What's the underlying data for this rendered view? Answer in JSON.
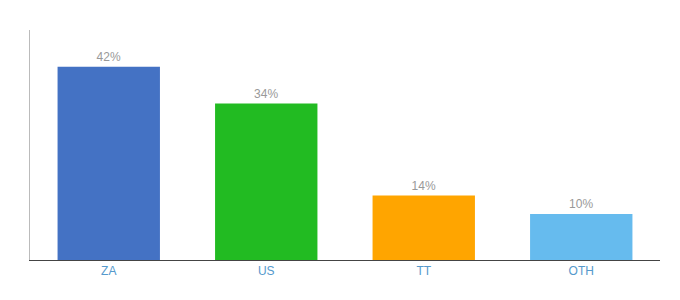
{
  "chart_data": {
    "type": "bar",
    "categories": [
      "ZA",
      "US",
      "TT",
      "OTH"
    ],
    "values": [
      42,
      34,
      14,
      10
    ],
    "value_labels": [
      "42%",
      "34%",
      "14%",
      "10%"
    ],
    "data_labels": true,
    "colors": [
      "#4472C4",
      "#22BB22",
      "#FFA500",
      "#66BBEE"
    ],
    "ylim": [
      0,
      50
    ],
    "yticks": [],
    "tick_labels": "x",
    "grid": false
  }
}
